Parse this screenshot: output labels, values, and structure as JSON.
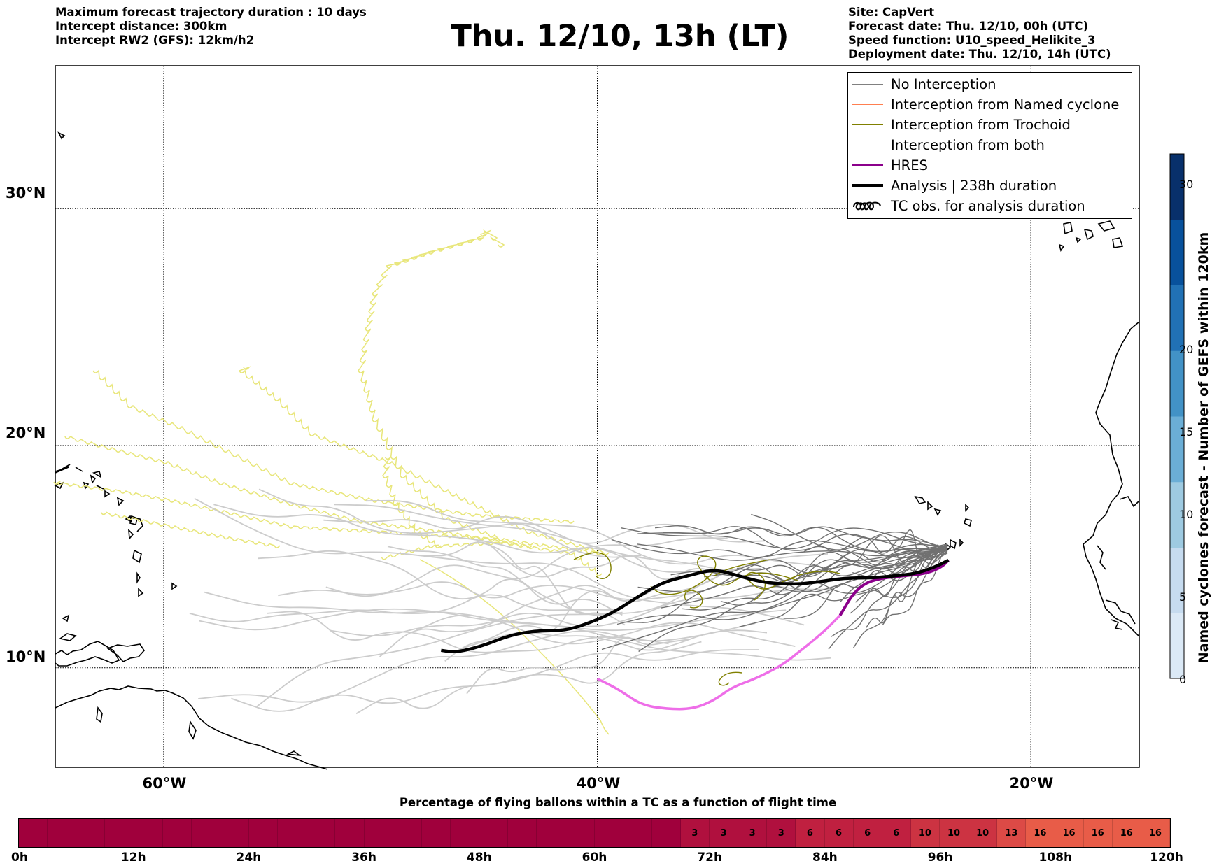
{
  "header": {
    "left": [
      "Maximum forecast trajectory duration : 10 days",
      "Intercept distance: 300km",
      "Intercept RW2 (GFS):  12km/h2"
    ],
    "title": "Thu. 12/10, 13h (LT)",
    "right": [
      "Site: CapVert",
      "Forecast date: Thu. 12/10, 00h (UTC)",
      "Speed function: U10_speed_Helikite_3",
      "Deployment date: Thu. 12/10, 14h (UTC)"
    ]
  },
  "map": {
    "lat_labels": [
      {
        "label": "30°N",
        "lat": 30
      },
      {
        "label": "20°N",
        "lat": 20
      },
      {
        "label": "10°N",
        "lat": 10
      }
    ],
    "lon_labels": [
      {
        "label": "60°W",
        "lon": -60
      },
      {
        "label": "40°W",
        "lon": -40
      },
      {
        "label": "20°W",
        "lon": -20
      }
    ],
    "lon_range": [
      -65,
      -15
    ],
    "lat_range": [
      5.4,
      35.6
    ]
  },
  "legend": [
    {
      "label": "No Interception",
      "color": "#808080",
      "kind": "thin"
    },
    {
      "label": "Interception from Named cyclone",
      "color": "#ff7f50",
      "kind": "thin"
    },
    {
      "label": "Interception from Trochoid",
      "color": "#808000",
      "kind": "thin"
    },
    {
      "label": "Interception from both",
      "color": "#228b22",
      "kind": "thin"
    },
    {
      "label": "HRES",
      "color": "#8b008b",
      "kind": "thick"
    },
    {
      "label": "Analysis | 238h duration",
      "color": "#000000",
      "kind": "thick"
    },
    {
      "label": "TC obs. for analysis duration",
      "color": "#000000",
      "kind": "loops"
    }
  ],
  "colorbar": {
    "title": "Named cyclones forecast - Number of GEFS within 120km",
    "ticks": [
      "0",
      "5",
      "10",
      "15",
      "20",
      "30"
    ],
    "colors": [
      "#dbe9f6",
      "#c6dbef",
      "#9ecae1",
      "#6baed6",
      "#4292c6",
      "#2171b5",
      "#08519c",
      "#08306b"
    ]
  },
  "flight_bar": {
    "title": "Percentage of flying ballons within a TC as a function of flight time",
    "ticks": [
      "0h",
      "12h",
      "24h",
      "36h",
      "48h",
      "60h",
      "72h",
      "84h",
      "96h",
      "108h",
      "120h"
    ],
    "values": [
      0,
      0,
      0,
      0,
      0,
      0,
      0,
      0,
      0,
      0,
      0,
      0,
      0,
      0,
      0,
      0,
      0,
      0,
      0,
      0,
      0,
      0,
      0,
      3,
      3,
      3,
      3,
      6,
      6,
      6,
      6,
      10,
      10,
      10,
      13,
      16,
      16,
      16,
      16,
      16
    ],
    "labels": [
      "",
      "",
      "",
      "",
      "",
      "",
      "",
      "",
      "",
      "",
      "",
      "",
      "",
      "",
      "",
      "",
      "",
      "",
      "",
      "",
      "",
      "",
      "",
      "3",
      "3",
      "3",
      "3",
      "6",
      "6",
      "6",
      "6",
      "10",
      "10",
      "10",
      "13",
      "16",
      "16",
      "16",
      "16",
      "16"
    ]
  },
  "tracks": {
    "analysis": [
      [
        -47.2,
        10.8
      ],
      [
        -46.5,
        10.7
      ],
      [
        -45.3,
        11.0
      ],
      [
        -44.0,
        11.5
      ],
      [
        -42.8,
        11.7
      ],
      [
        -41.5,
        11.7
      ],
      [
        -40.5,
        12.0
      ],
      [
        -39.3,
        12.5
      ],
      [
        -38.2,
        13.2
      ],
      [
        -37.0,
        13.9
      ],
      [
        -35.8,
        14.2
      ],
      [
        -34.6,
        14.5
      ],
      [
        -33.5,
        14.2
      ],
      [
        -32.4,
        13.9
      ],
      [
        -31.0,
        13.8
      ],
      [
        -29.9,
        13.9
      ],
      [
        -28.6,
        14.1
      ],
      [
        -27.3,
        14.1
      ],
      [
        -26.2,
        14.2
      ],
      [
        -25.3,
        14.3
      ],
      [
        -24.4,
        14.6
      ],
      [
        -23.8,
        14.9
      ]
    ],
    "hres": [
      [
        -40.0,
        9.5
      ],
      [
        -39.0,
        9.0
      ],
      [
        -38.0,
        8.3
      ],
      [
        -36.8,
        8.1
      ],
      [
        -35.6,
        8.1
      ],
      [
        -34.6,
        8.5
      ],
      [
        -33.8,
        9.1
      ],
      [
        -32.7,
        9.5
      ],
      [
        -31.5,
        10.1
      ],
      [
        -30.6,
        10.8
      ],
      [
        -29.6,
        11.6
      ],
      [
        -28.8,
        12.4
      ],
      [
        -28.2,
        13.4
      ],
      [
        -27.6,
        13.9
      ],
      [
        -26.8,
        14.1
      ],
      [
        -25.8,
        14.2
      ],
      [
        -24.8,
        14.3
      ],
      [
        -24.1,
        14.6
      ],
      [
        -23.8,
        14.9
      ]
    ]
  }
}
